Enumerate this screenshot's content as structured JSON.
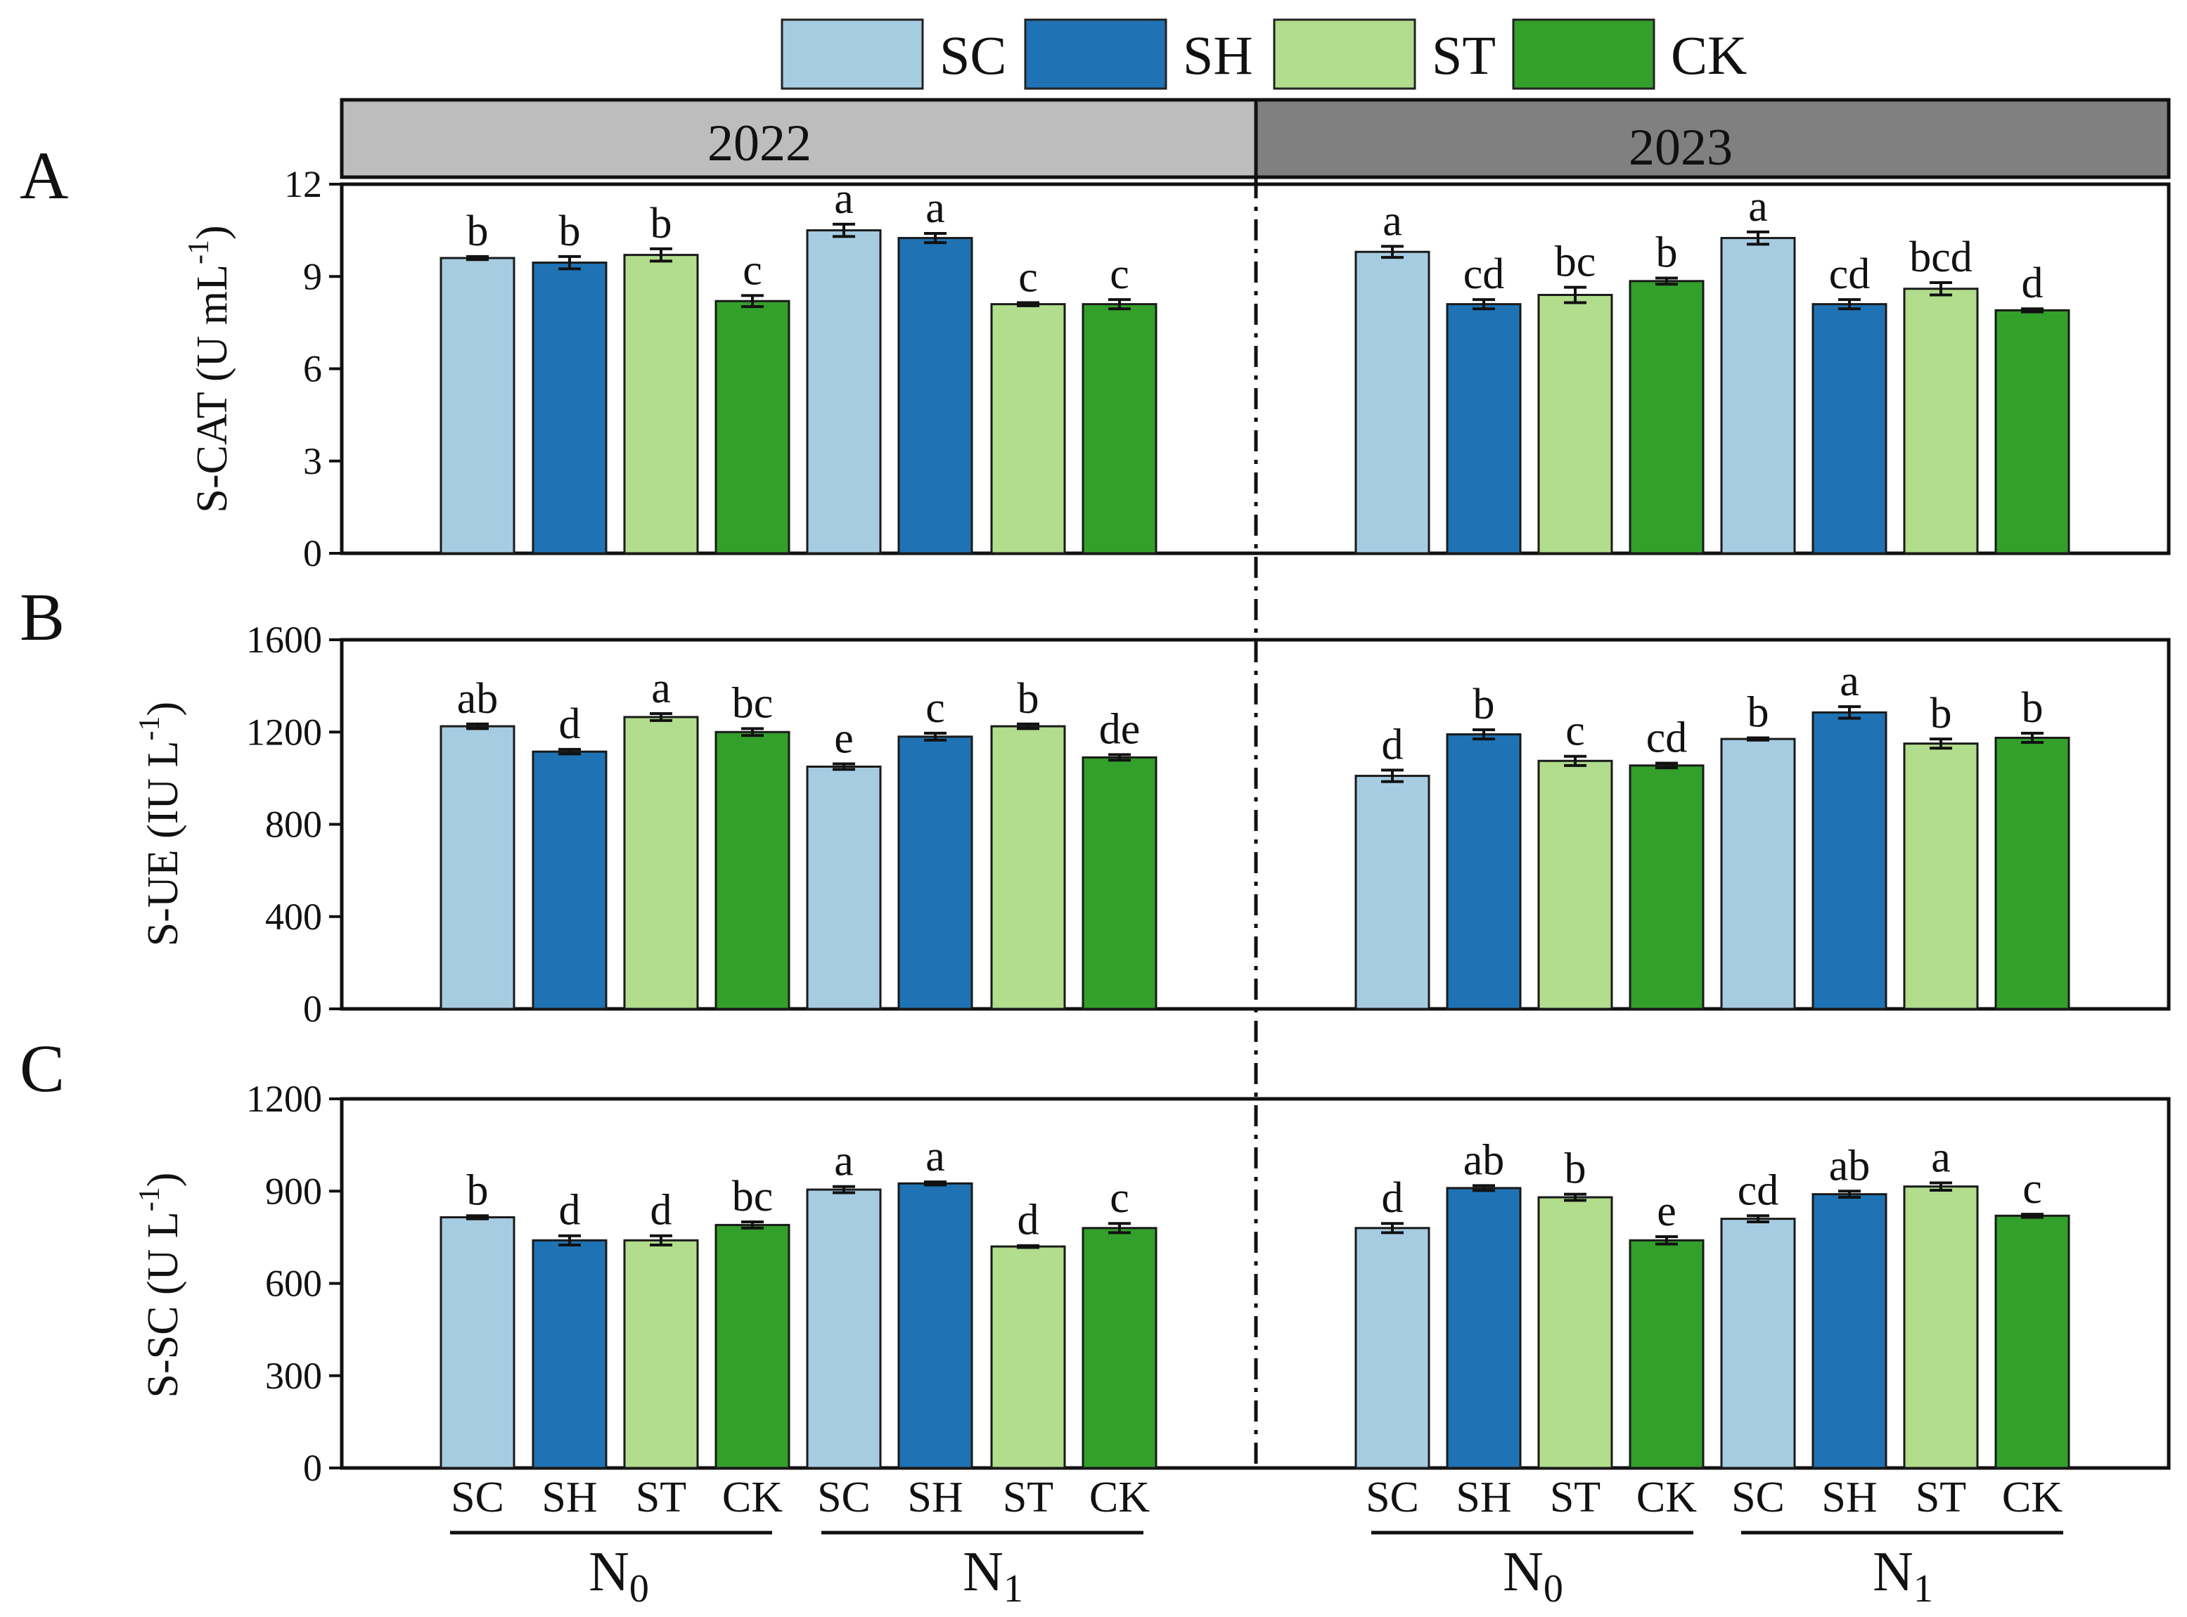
{
  "colors": {
    "SC": "#a6cce2",
    "SH": "#1f73b4",
    "ST": "#b1dd8c",
    "CK": "#33a02b"
  },
  "legend": [
    {
      "key": "SC",
      "label": "SC"
    },
    {
      "key": "SH",
      "label": "SH"
    },
    {
      "key": "ST",
      "label": "ST"
    },
    {
      "key": "CK",
      "label": "CK"
    }
  ],
  "years": [
    "2022",
    "2023"
  ],
  "nitrogen_groups": [
    {
      "base": "N",
      "sub": "0"
    },
    {
      "base": "N",
      "sub": "1"
    },
    {
      "base": "N",
      "sub": "0"
    },
    {
      "base": "N",
      "sub": "1"
    }
  ],
  "x_categories": [
    "SC",
    "SH",
    "ST",
    "CK",
    "SC",
    "SH",
    "ST",
    "CK",
    "SC",
    "SH",
    "ST",
    "CK",
    "SC",
    "SH",
    "ST",
    "CK"
  ],
  "chart_data": [
    {
      "type": "bar",
      "panel": "A",
      "ylabel": {
        "main": "S-CAT (U mL",
        "sup": "-1",
        "tail": ")"
      },
      "ylim": [
        0,
        12
      ],
      "yticks": [
        0,
        3,
        6,
        9,
        12
      ],
      "values": [
        9.6,
        9.45,
        9.7,
        8.2,
        10.5,
        10.25,
        8.1,
        8.1,
        9.8,
        8.1,
        8.4,
        8.85,
        10.25,
        8.1,
        8.6,
        7.9
      ],
      "errors": [
        0.05,
        0.2,
        0.2,
        0.18,
        0.2,
        0.15,
        0.05,
        0.15,
        0.18,
        0.15,
        0.25,
        0.1,
        0.2,
        0.15,
        0.2,
        0.05
      ],
      "letters": [
        "b",
        "b",
        "b",
        "c",
        "a",
        "a",
        "c",
        "c",
        "a",
        "cd",
        "bc",
        "b",
        "a",
        "cd",
        "bcd",
        "d"
      ]
    },
    {
      "type": "bar",
      "panel": "B",
      "ylabel": {
        "main": "S-UE (IU L",
        "sup": "-1",
        "tail": ")"
      },
      "ylim": [
        0,
        1600
      ],
      "yticks": [
        0,
        400,
        800,
        1200,
        1600
      ],
      "values": [
        1225,
        1115,
        1265,
        1200,
        1050,
        1180,
        1225,
        1090,
        1010,
        1190,
        1075,
        1055,
        1170,
        1285,
        1150,
        1175
      ],
      "errors": [
        10,
        10,
        15,
        15,
        12,
        15,
        10,
        12,
        25,
        20,
        20,
        10,
        5,
        25,
        20,
        20
      ],
      "letters": [
        "ab",
        "d",
        "a",
        "bc",
        "e",
        "c",
        "b",
        "de",
        "d",
        "b",
        "c",
        "cd",
        "b",
        "a",
        "b",
        "b"
      ]
    },
    {
      "type": "bar",
      "panel": "C",
      "ylabel": {
        "main": "S-SC (U L",
        "sup": "-1",
        "tail": ")"
      },
      "ylim": [
        0,
        1200
      ],
      "yticks": [
        0,
        300,
        600,
        900,
        1200
      ],
      "values": [
        815,
        740,
        740,
        790,
        905,
        925,
        720,
        780,
        780,
        910,
        880,
        740,
        810,
        890,
        915,
        820
      ],
      "errors": [
        5,
        15,
        15,
        10,
        10,
        5,
        3,
        15,
        15,
        8,
        10,
        12,
        10,
        10,
        12,
        5
      ],
      "letters": [
        "b",
        "d",
        "d",
        "bc",
        "a",
        "a",
        "d",
        "c",
        "d",
        "ab",
        "b",
        "e",
        "cd",
        "ab",
        "a",
        "c"
      ]
    }
  ]
}
